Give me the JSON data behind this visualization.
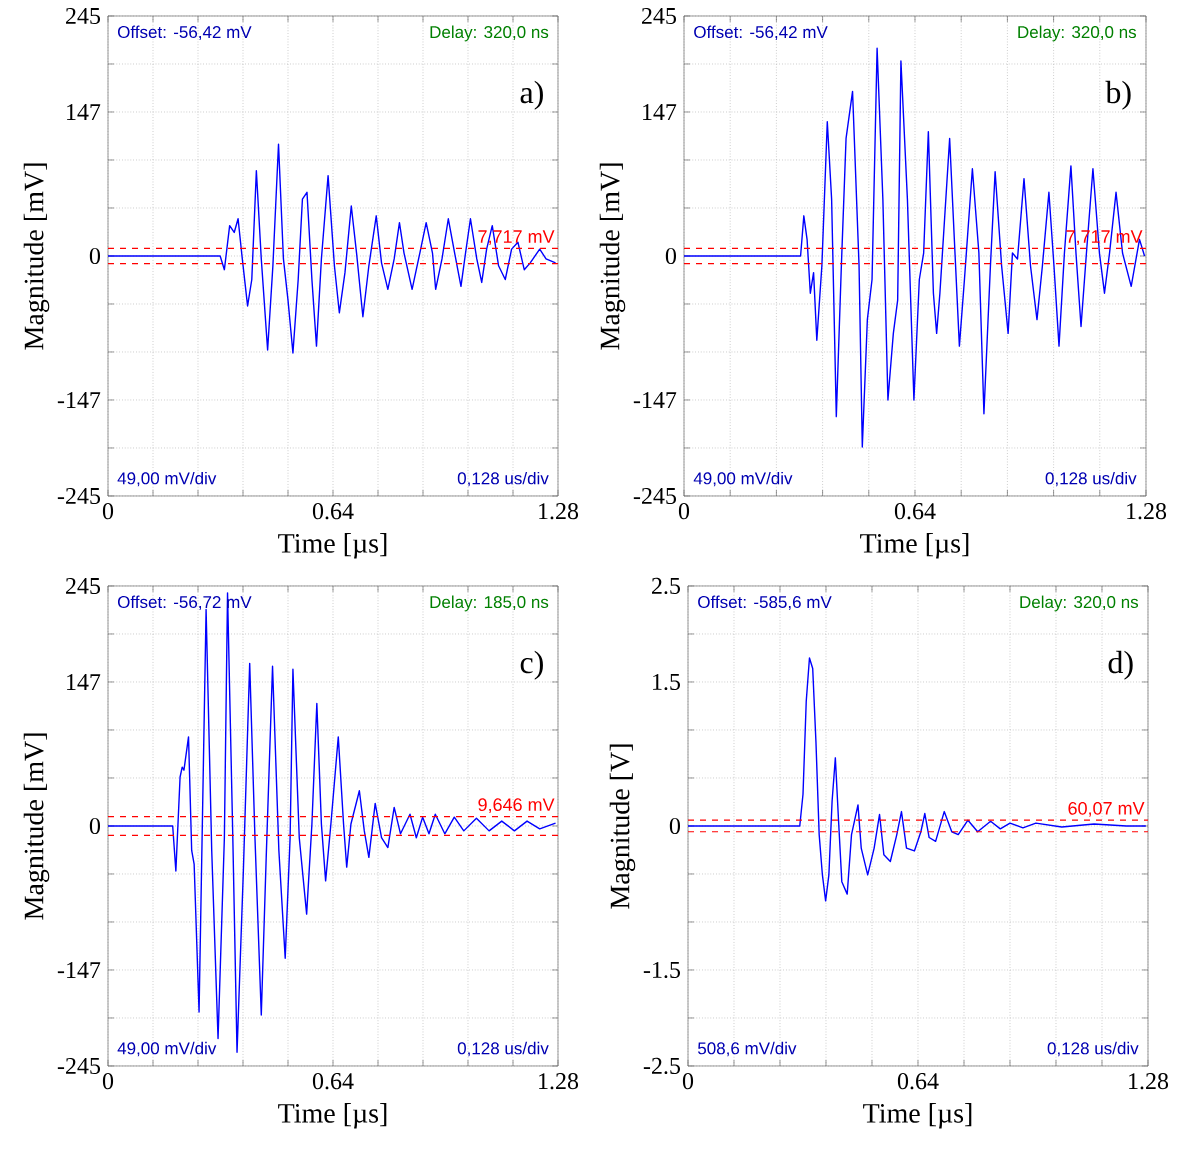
{
  "chart_data": [
    {
      "type": "line",
      "xlabel": "Time [µs]",
      "ylabel": "Magnitude [mV]",
      "xlim": [
        0,
        1.28
      ],
      "ylim": [
        -245,
        245
      ],
      "xticks": [
        0,
        {
          "value": 0.128,
          "label": null
        },
        {
          "value": 0.256,
          "label": null
        },
        {
          "value": 0.384,
          "label": null
        },
        {
          "value": 0.512,
          "label": null
        },
        0.64,
        {
          "value": 0.768,
          "label": null
        },
        {
          "value": 0.896,
          "label": null
        },
        {
          "value": 1.024,
          "label": null
        },
        {
          "value": 1.152,
          "label": null
        },
        1.28
      ],
      "yticks": [
        -245,
        {
          "value": -196,
          "label": null
        },
        -147,
        {
          "value": -98,
          "label": null
        },
        {
          "value": -49,
          "label": null
        },
        0,
        {
          "value": 49,
          "label": null
        },
        {
          "value": 98,
          "label": null
        },
        147,
        {
          "value": 196,
          "label": null
        },
        245
      ],
      "grid": true,
      "annotations": [
        "Offset: -56,42 mV",
        "Delay: 320,0 ns",
        "49,00 mV/div",
        "0,128 us/div",
        "a)"
      ],
      "ref_lines": [
        {
          "axis": "y",
          "value": 7.717,
          "label": "7,717 mV",
          "color": "#ff0000",
          "line_style": "dashed"
        },
        {
          "axis": "y",
          "value": -7.717,
          "color": "#ff0000",
          "line_style": "dashed"
        }
      ],
      "x": [
        0,
        0.1,
        0.2,
        0.3,
        0.319,
        0.331,
        0.346,
        0.359,
        0.37,
        0.382,
        0.397,
        0.409,
        0.422,
        0.436,
        0.454,
        0.469,
        0.485,
        0.499,
        0.512,
        0.526,
        0.541,
        0.553,
        0.566,
        0.58,
        0.593,
        0.607,
        0.626,
        0.644,
        0.658,
        0.674,
        0.692,
        0.707,
        0.725,
        0.742,
        0.763,
        0.778,
        0.796,
        0.814,
        0.829,
        0.842,
        0.865,
        0.887,
        0.905,
        0.923,
        0.932,
        0.95,
        0.968,
        0.986,
        1.004,
        1.017,
        1.031,
        1.049,
        1.063,
        1.077,
        1.093,
        1.111,
        1.13,
        1.148,
        1.166,
        1.184,
        1.201,
        1.228,
        1.246,
        1.273
      ],
      "series": [
        {
          "color": "#0000ff",
          "values": [
            0,
            0,
            0,
            0,
            0,
            -14,
            31,
            24,
            38,
            -3,
            -51,
            -24,
            87,
            -3,
            -96,
            -10,
            114,
            -3,
            -45,
            -99,
            -24,
            58,
            65,
            -24,
            -92,
            -3,
            82,
            -10,
            -58,
            -17,
            51,
            3,
            -62,
            -10,
            41,
            -7,
            -34,
            -3,
            34,
            3,
            -34,
            3,
            34,
            3,
            -34,
            -3,
            38,
            3,
            -31,
            3,
            38,
            -3,
            -27,
            7,
            31,
            -10,
            -24,
            7,
            14,
            -14,
            -7,
            7,
            -3,
            -7
          ]
        }
      ]
    },
    {
      "type": "line",
      "xlabel": "Time [µs]",
      "ylabel": "Magnitude [mV]",
      "xlim": [
        0,
        1.28
      ],
      "ylim": [
        -245,
        245
      ],
      "xticks": [
        0,
        {
          "value": 0.128,
          "label": null
        },
        {
          "value": 0.256,
          "label": null
        },
        {
          "value": 0.384,
          "label": null
        },
        {
          "value": 0.512,
          "label": null
        },
        0.64,
        {
          "value": 0.768,
          "label": null
        },
        {
          "value": 0.896,
          "label": null
        },
        {
          "value": 1.024,
          "label": null
        },
        {
          "value": 1.152,
          "label": null
        },
        1.28
      ],
      "yticks": [
        -245,
        {
          "value": -196,
          "label": null
        },
        -147,
        {
          "value": -98,
          "label": null
        },
        {
          "value": -49,
          "label": null
        },
        0,
        {
          "value": 49,
          "label": null
        },
        {
          "value": 98,
          "label": null
        },
        147,
        {
          "value": 196,
          "label": null
        },
        245
      ],
      "grid": true,
      "annotations": [
        "Offset: -56,42 mV",
        "Delay: 320,0 ns",
        "49,00 mV/div",
        "0,128 us/div",
        "b)"
      ],
      "ref_lines": [
        {
          "axis": "y",
          "value": 7.717,
          "label": "7,717 mV",
          "color": "#ff0000",
          "line_style": "dashed"
        },
        {
          "axis": "y",
          "value": -7.717,
          "color": "#ff0000",
          "line_style": "dashed"
        }
      ],
      "x": [
        0,
        0.1,
        0.2,
        0.3,
        0.323,
        0.332,
        0.341,
        0.35,
        0.359,
        0.368,
        0.382,
        0.397,
        0.409,
        0.422,
        0.436,
        0.449,
        0.467,
        0.485,
        0.494,
        0.508,
        0.521,
        0.535,
        0.551,
        0.565,
        0.58,
        0.592,
        0.601,
        0.619,
        0.637,
        0.652,
        0.664,
        0.677,
        0.691,
        0.7,
        0.709,
        0.736,
        0.749,
        0.763,
        0.777,
        0.799,
        0.817,
        0.831,
        0.849,
        0.862,
        0.88,
        0.898,
        0.91,
        0.924,
        0.942,
        0.96,
        0.978,
        0.993,
        1.011,
        1.025,
        1.039,
        1.054,
        1.072,
        1.086,
        1.1,
        1.115,
        1.133,
        1.151,
        1.165,
        1.179,
        1.197,
        1.215,
        1.239,
        1.262,
        1.276
      ],
      "series": [
        {
          "color": "#0000ff",
          "values": [
            0,
            0,
            0,
            0,
            0,
            41,
            17,
            -38,
            -17,
            -86,
            -10,
            137,
            58,
            -164,
            -10,
            120,
            168,
            -10,
            -195,
            -65,
            -24,
            212,
            58,
            -147,
            -79,
            -45,
            199,
            58,
            -147,
            -24,
            3,
            127,
            -38,
            -79,
            -38,
            120,
            17,
            -92,
            -24,
            89,
            3,
            -161,
            -10,
            86,
            -10,
            -79,
            3,
            -3,
            79,
            -10,
            -65,
            -10,
            65,
            -10,
            -92,
            3,
            92,
            3,
            -72,
            3,
            89,
            3,
            -38,
            3,
            65,
            3,
            -31,
            17,
            0
          ]
        }
      ]
    },
    {
      "type": "line",
      "xlabel": "Time [µs]",
      "ylabel": "Magnitude [mV]",
      "xlim": [
        0,
        1.28
      ],
      "ylim": [
        -245,
        245
      ],
      "xticks": [
        0,
        {
          "value": 0.128,
          "label": null
        },
        {
          "value": 0.256,
          "label": null
        },
        {
          "value": 0.384,
          "label": null
        },
        {
          "value": 0.512,
          "label": null
        },
        0.64,
        {
          "value": 0.768,
          "label": null
        },
        {
          "value": 0.896,
          "label": null
        },
        {
          "value": 1.024,
          "label": null
        },
        {
          "value": 1.152,
          "label": null
        },
        1.28
      ],
      "yticks": [
        -245,
        {
          "value": -196,
          "label": null
        },
        -147,
        {
          "value": -98,
          "label": null
        },
        {
          "value": -49,
          "label": null
        },
        0,
        {
          "value": 49,
          "label": null
        },
        {
          "value": 98,
          "label": null
        },
        147,
        {
          "value": 196,
          "label": null
        },
        245
      ],
      "grid": true,
      "annotations": [
        "Offset: -56,72 mV",
        "Delay: 185,0 ns",
        "49,00 mV/div",
        "0,128 us/div",
        "c)"
      ],
      "ref_lines": [
        {
          "axis": "y",
          "value": 9.646,
          "label": "9,646 mV",
          "color": "#ff0000",
          "line_style": "dashed"
        },
        {
          "axis": "y",
          "value": -9.646,
          "color": "#ff0000",
          "line_style": "dashed"
        }
      ],
      "x": [
        0,
        0.08,
        0.16,
        0.184,
        0.193,
        0.205,
        0.211,
        0.216,
        0.229,
        0.238,
        0.245,
        0.259,
        0.279,
        0.295,
        0.313,
        0.331,
        0.34,
        0.355,
        0.367,
        0.385,
        0.403,
        0.418,
        0.436,
        0.45,
        0.468,
        0.486,
        0.504,
        0.518,
        0.526,
        0.544,
        0.565,
        0.58,
        0.594,
        0.607,
        0.619,
        0.634,
        0.655,
        0.67,
        0.679,
        0.691,
        0.715,
        0.729,
        0.742,
        0.76,
        0.778,
        0.796,
        0.814,
        0.832,
        0.859,
        0.877,
        0.895,
        0.913,
        0.931,
        0.958,
        0.985,
        1.012,
        1.048,
        1.084,
        1.12,
        1.156,
        1.192,
        1.228,
        1.273
      ],
      "series": [
        {
          "color": "#0000ff",
          "values": [
            0,
            0,
            0,
            0,
            -46,
            50,
            60,
            57,
            91,
            -25,
            -39,
            -190,
            221,
            -25,
            -217,
            -12,
            238,
            -12,
            -231,
            -46,
            166,
            -12,
            -193,
            -32,
            163,
            -25,
            -135,
            -12,
            160,
            -12,
            -90,
            2,
            125,
            2,
            -56,
            2,
            91,
            2,
            -42,
            2,
            36,
            -5,
            -32,
            23,
            -12,
            -22,
            19,
            -8,
            12,
            -12,
            9,
            -8,
            12,
            -8,
            9,
            -5,
            8,
            -5,
            5,
            -5,
            5,
            -3,
            3
          ]
        }
      ]
    },
    {
      "type": "line",
      "xlabel": "Time [µs]",
      "ylabel": "Magnitude [V]",
      "xlim": [
        0,
        1.28
      ],
      "ylim": [
        -2.5,
        2.5
      ],
      "xticks": [
        0,
        {
          "value": 0.128,
          "label": null
        },
        {
          "value": 0.256,
          "label": null
        },
        {
          "value": 0.384,
          "label": null
        },
        {
          "value": 0.512,
          "label": null
        },
        0.64,
        {
          "value": 0.768,
          "label": null
        },
        {
          "value": 0.896,
          "label": null
        },
        {
          "value": 1.024,
          "label": null
        },
        {
          "value": 1.152,
          "label": null
        },
        1.28
      ],
      "yticks": [
        -2.5,
        {
          "value": -2,
          "label": null
        },
        -1.5,
        {
          "value": -1,
          "label": null
        },
        {
          "value": -0.5,
          "label": null
        },
        0,
        {
          "value": 0.5,
          "label": null
        },
        {
          "value": 1,
          "label": null
        },
        1.5,
        {
          "value": 2,
          "label": null
        },
        2.5
      ],
      "grid": true,
      "annotations": [
        "Offset: -585,6 mV",
        "Delay: 320,0 ns",
        "508,6 mV/div",
        "0,128 us/div",
        "d)"
      ],
      "ref_lines": [
        {
          "axis": "y",
          "value": 0.06007,
          "label": "60,07 mV",
          "color": "#ff0000",
          "line_style": "dashed"
        },
        {
          "axis": "y",
          "value": -0.06007,
          "color": "#ff0000",
          "line_style": "dashed"
        }
      ],
      "x": [
        0,
        0.1,
        0.2,
        0.311,
        0.32,
        0.329,
        0.338,
        0.347,
        0.356,
        0.365,
        0.374,
        0.383,
        0.392,
        0.401,
        0.41,
        0.419,
        0.428,
        0.443,
        0.455,
        0.473,
        0.482,
        0.5,
        0.518,
        0.533,
        0.545,
        0.563,
        0.581,
        0.594,
        0.608,
        0.63,
        0.648,
        0.659,
        0.671,
        0.689,
        0.713,
        0.734,
        0.752,
        0.779,
        0.806,
        0.842,
        0.869,
        0.896,
        0.932,
        0.968,
        1.04,
        1.13,
        1.22,
        1.274
      ],
      "series": [
        {
          "color": "#0000ff",
          "values": [
            0,
            0,
            0,
            0,
            0.33,
            1.3,
            1.75,
            1.64,
            0.88,
            -0.09,
            -0.51,
            -0.78,
            -0.51,
            0.26,
            0.71,
            0.05,
            -0.58,
            -0.71,
            -0.09,
            0.22,
            -0.23,
            -0.51,
            -0.23,
            0.12,
            -0.3,
            -0.37,
            -0.09,
            0.15,
            -0.23,
            -0.26,
            -0.06,
            0.13,
            -0.12,
            -0.16,
            0.15,
            -0.06,
            -0.09,
            0.06,
            -0.06,
            0.05,
            -0.03,
            0.03,
            -0.02,
            0.03,
            -0.01,
            0.02,
            0,
            0
          ]
        }
      ]
    }
  ]
}
